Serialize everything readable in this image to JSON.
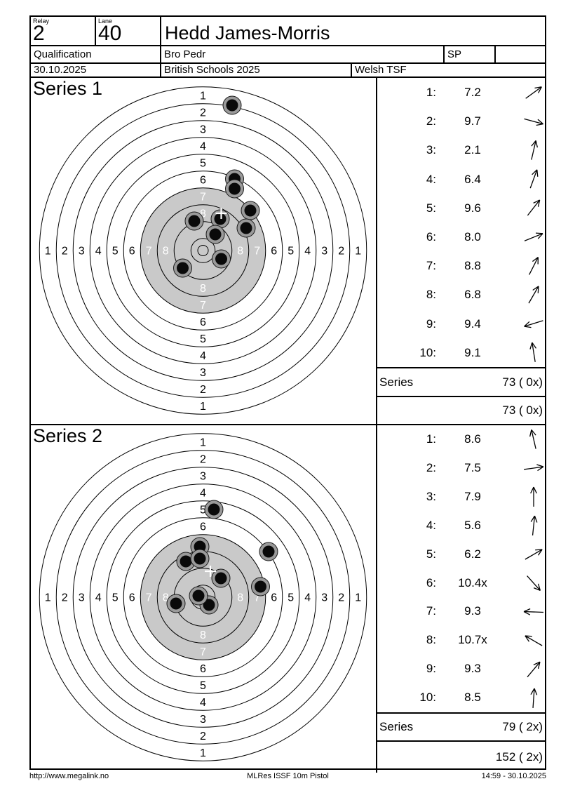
{
  "header": {
    "relay_label": "Relay",
    "relay_value": "2",
    "lane_label": "Lane",
    "lane_value": "40",
    "shooter_name": "Hedd James-Morris",
    "round": "Qualification",
    "club": "Bro Pedr",
    "class": "SP",
    "date": "30.10.2025",
    "event": "British Schools 2025",
    "team": "Welsh TSF"
  },
  "footer": {
    "url": "http://www.megalink.no",
    "program": "MLRes ISSF 10m Pistol",
    "datetime": "14:59 - 30.10.2025"
  },
  "colors": {
    "ink": "#000000",
    "aim_gray": "#c9c9c9",
    "shot_fill": "#9a9a9a",
    "shot_edge": "#1a1a1a",
    "shot_core": "#0a0a0a",
    "mpi_cross": "#ffffff",
    "label_on_gray": "#ffffff"
  },
  "target": {
    "ring_boundary_radii": [
      233.25,
      209.25,
      185.25,
      161.25,
      137.25,
      113.25,
      89.25,
      65.25,
      41.25,
      17.25,
      7.5
    ],
    "ring_label_numbers": [
      1,
      2,
      3,
      4,
      5,
      6,
      7,
      8
    ],
    "ring_label_start_radius": 221.25,
    "ring_label_step": 24,
    "gray_disc_radius": 89.25,
    "white_label_min_ring": 7,
    "shot_outer_r": 13,
    "shot_core_r": 8.5
  },
  "series": [
    {
      "title": "Series 1",
      "sum_label": "Series",
      "sum_value": "73 ( 0x)",
      "running_value": "73 ( 0x)",
      "mpi": {
        "dx": 26,
        "dy": -53
      },
      "shots": [
        {
          "no": "1:",
          "score": "7.2",
          "val": 7.2,
          "arrow_deg": 36,
          "dx": 67.5,
          "dy": -57
        },
        {
          "no": "2:",
          "score": "9.7",
          "val": 9.7,
          "arrow_deg": -15,
          "dx": 26,
          "dy": 12
        },
        {
          "no": "3:",
          "score": "2.1",
          "val": 2.1,
          "arrow_deg": 77,
          "dx": 41.5,
          "dy": -207
        },
        {
          "no": "4:",
          "score": "6.4",
          "val": 6.4,
          "arrow_deg": 70,
          "dx": 45,
          "dy": -102
        },
        {
          "no": "5:",
          "score": "9.6",
          "val": 9.6,
          "arrow_deg": 52,
          "dx": 17.5,
          "dy": -23
        },
        {
          "no": "6:",
          "score": "8.0",
          "val": 8.0,
          "arrow_deg": 22,
          "dx": 61.5,
          "dy": -32
        },
        {
          "no": "7:",
          "score": "8.8",
          "val": 8.8,
          "arrow_deg": 63,
          "dx": 24.5,
          "dy": -45
        },
        {
          "no": "8:",
          "score": "6.8",
          "val": 6.8,
          "arrow_deg": 60,
          "dx": 45,
          "dy": -88
        },
        {
          "no": "9:",
          "score": "9.4",
          "val": 9.4,
          "arrow_deg": 197,
          "dx": -29,
          "dy": 25
        },
        {
          "no": "10:",
          "score": "9.1",
          "val": 9.1,
          "arrow_deg": 99,
          "dx": -12.5,
          "dy": -42
        }
      ]
    },
    {
      "title": "Series 2",
      "sum_label": "Series",
      "sum_value": "79 ( 2x)",
      "running_value": "152 ( 2x)",
      "mpi": {
        "dx": 10.5,
        "dy": -37
      },
      "shots": [
        {
          "no": "1:",
          "score": "8.6",
          "val": 8.6,
          "arrow_deg": 103,
          "dx": -4.5,
          "dy": -55
        },
        {
          "no": "2:",
          "score": "7.5",
          "val": 7.5,
          "arrow_deg": 8,
          "dx": 82,
          "dy": -15
        },
        {
          "no": "3:",
          "score": "7.9",
          "val": 7.9,
          "arrow_deg": 90,
          "dx": -4.5,
          "dy": -72
        },
        {
          "no": "4:",
          "score": "5.6",
          "val": 5.6,
          "arrow_deg": 84,
          "dx": 15.5,
          "dy": -125
        },
        {
          "no": "5:",
          "score": "6.2",
          "val": 6.2,
          "arrow_deg": 30,
          "dx": 93.5,
          "dy": -65
        },
        {
          "no": "6:",
          "score": "10.4x",
          "val": 10.4,
          "arrow_deg": -48,
          "dx": 8.5,
          "dy": 11
        },
        {
          "no": "7:",
          "score": "9.3",
          "val": 9.3,
          "arrow_deg": 178,
          "dx": -38.5,
          "dy": 9
        },
        {
          "no": "8:",
          "score": "10.7x",
          "val": 10.7,
          "arrow_deg": 150,
          "dx": -6.5,
          "dy": -2
        },
        {
          "no": "9:",
          "score": "9.3",
          "val": 9.3,
          "arrow_deg": 50,
          "dx": 25.5,
          "dy": -27
        },
        {
          "no": "10:",
          "score": "8.5",
          "val": 8.5,
          "arrow_deg": 86,
          "dx": -24.5,
          "dy": -51
        }
      ]
    }
  ]
}
